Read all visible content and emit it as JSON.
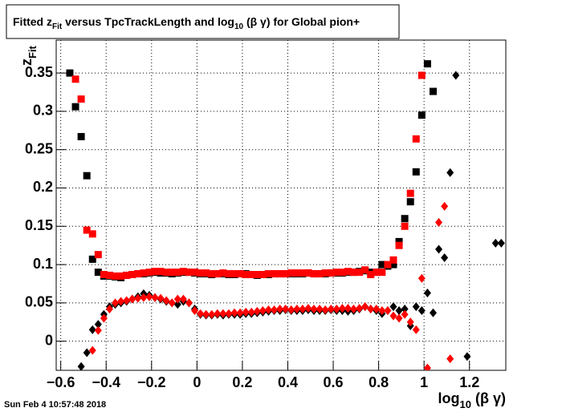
{
  "chart_data": {
    "type": "scatter",
    "title": [
      "Fitted  z",
      "Fit",
      "  versus TpcTrackLength and log",
      "10",
      " (β γ) for Global pion+"
    ],
    "y_label": [
      "z",
      "Fit"
    ],
    "x_label": [
      "log",
      "10",
      " (β γ)"
    ],
    "date_stamp": "Sun Feb  4 10:57:48 2018",
    "grid": true,
    "xlim": [
      -0.62,
      1.36
    ],
    "ylim": [
      -0.038,
      0.393
    ],
    "xticks": [
      {
        "value": -0.6,
        "label": "−0.6"
      },
      {
        "value": -0.4,
        "label": "−0.4"
      },
      {
        "value": -0.2,
        "label": "−0.2"
      },
      0,
      0.2,
      0.4,
      0.6,
      0.8,
      1,
      1.2
    ],
    "yticks": [
      0,
      0.05,
      0.1,
      0.15,
      0.2,
      0.25,
      0.3,
      0.35
    ],
    "x": [
      -0.56,
      -0.535,
      -0.51,
      -0.485,
      -0.46,
      -0.435,
      -0.41,
      -0.385,
      -0.36,
      -0.335,
      -0.31,
      -0.285,
      -0.26,
      -0.235,
      -0.21,
      -0.185,
      -0.16,
      -0.135,
      -0.11,
      -0.085,
      -0.06,
      -0.035,
      -0.01,
      0.015,
      0.04,
      0.065,
      0.09,
      0.115,
      0.14,
      0.165,
      0.19,
      0.215,
      0.24,
      0.265,
      0.29,
      0.315,
      0.34,
      0.365,
      0.39,
      0.415,
      0.44,
      0.465,
      0.49,
      0.515,
      0.54,
      0.565,
      0.59,
      0.615,
      0.64,
      0.665,
      0.69,
      0.715,
      0.74,
      0.765,
      0.79,
      0.815,
      0.84,
      0.865,
      0.89,
      0.915,
      0.94,
      0.965,
      0.99,
      1.015,
      1.04,
      1.065,
      1.09,
      1.115,
      1.14,
      1.165,
      1.19,
      1.215,
      1.24,
      1.265,
      1.29,
      1.315,
      1.34
    ],
    "series": [
      {
        "marker": "square",
        "color": "#000000",
        "values": [
          0.35,
          0.306,
          0.267,
          0.216,
          0.107,
          0.09,
          0.085,
          0.085,
          0.084,
          0.083,
          0.086,
          0.087,
          0.088,
          0.088,
          0.089,
          0.09,
          0.089,
          0.089,
          0.088,
          0.089,
          0.09,
          0.09,
          0.089,
          0.088,
          0.088,
          0.087,
          0.088,
          0.088,
          0.087,
          0.087,
          0.088,
          0.088,
          0.087,
          0.086,
          0.087,
          0.087,
          0.088,
          0.088,
          0.088,
          0.088,
          0.088,
          0.088,
          0.089,
          0.088,
          0.088,
          0.088,
          0.089,
          0.089,
          0.089,
          0.09,
          0.09,
          0.091,
          0.092,
          0.09,
          0.09,
          0.1,
          0.098,
          0.1,
          0.13,
          0.16,
          0.182,
          0.221,
          0.295,
          0.362,
          0.326,
          null,
          null,
          null,
          null,
          null,
          null,
          null,
          null,
          null,
          null,
          null,
          null
        ]
      },
      {
        "marker": "square",
        "color": "#ff0000",
        "values": [
          null,
          0.342,
          0.316,
          0.145,
          0.14,
          0.113,
          0.087,
          0.086,
          0.085,
          0.085,
          0.086,
          0.087,
          0.088,
          0.089,
          0.09,
          0.091,
          0.091,
          0.09,
          0.09,
          0.09,
          0.091,
          0.09,
          0.09,
          0.089,
          0.089,
          0.088,
          0.088,
          0.089,
          0.088,
          0.088,
          0.088,
          0.087,
          0.087,
          0.087,
          0.087,
          0.088,
          0.088,
          0.088,
          0.088,
          0.089,
          0.089,
          0.089,
          0.089,
          0.088,
          0.088,
          0.089,
          0.089,
          0.09,
          0.09,
          0.091,
          0.09,
          0.09,
          0.093,
          0.087,
          0.09,
          0.09,
          0.1,
          0.106,
          0.125,
          0.15,
          0.193,
          0.264,
          0.347,
          null,
          null,
          null,
          null,
          null,
          null,
          null,
          null,
          null,
          null,
          null,
          null,
          null,
          null
        ]
      },
      {
        "marker": "diamond",
        "color": "#000000",
        "values": [
          null,
          null,
          -0.033,
          -0.015,
          0.015,
          0.022,
          0.035,
          0.045,
          0.048,
          0.05,
          0.052,
          0.055,
          0.058,
          0.062,
          0.06,
          0.057,
          0.055,
          0.052,
          0.05,
          0.048,
          0.052,
          0.05,
          0.042,
          0.035,
          0.034,
          0.034,
          0.035,
          0.034,
          0.035,
          0.035,
          0.035,
          0.036,
          0.036,
          0.037,
          0.038,
          0.039,
          0.04,
          0.04,
          0.041,
          0.04,
          0.04,
          0.04,
          0.041,
          0.04,
          0.04,
          0.04,
          0.041,
          0.04,
          0.04,
          0.039,
          0.04,
          0.042,
          0.045,
          0.042,
          0.04,
          0.036,
          0.04,
          0.045,
          0.04,
          0.042,
          0.02,
          0.045,
          0.04,
          0.063,
          0.037,
          0.12,
          0.109,
          0.22,
          0.347,
          null,
          -0.02,
          null,
          null,
          null,
          null,
          0.128,
          0.128
        ]
      },
      {
        "marker": "diamond",
        "color": "#ff0000",
        "values": [
          null,
          null,
          null,
          null,
          -0.012,
          0.014,
          0.03,
          0.042,
          0.05,
          0.052,
          0.053,
          0.055,
          0.056,
          0.057,
          0.058,
          0.057,
          0.056,
          0.053,
          0.05,
          0.055,
          0.055,
          0.05,
          0.04,
          0.036,
          0.035,
          0.035,
          0.036,
          0.036,
          0.036,
          0.037,
          0.037,
          0.038,
          0.038,
          0.039,
          0.04,
          0.041,
          0.041,
          0.042,
          0.042,
          0.041,
          0.042,
          0.042,
          0.043,
          0.042,
          0.042,
          0.041,
          0.042,
          0.042,
          0.043,
          0.043,
          0.042,
          0.043,
          0.045,
          0.042,
          0.042,
          0.04,
          0.04,
          0.033,
          0.03,
          0.035,
          0.025,
          0.015,
          0.082,
          -0.035,
          null,
          0.155,
          0.176,
          -0.023,
          null,
          null,
          null,
          null,
          null,
          null,
          null,
          null,
          null
        ]
      }
    ]
  }
}
